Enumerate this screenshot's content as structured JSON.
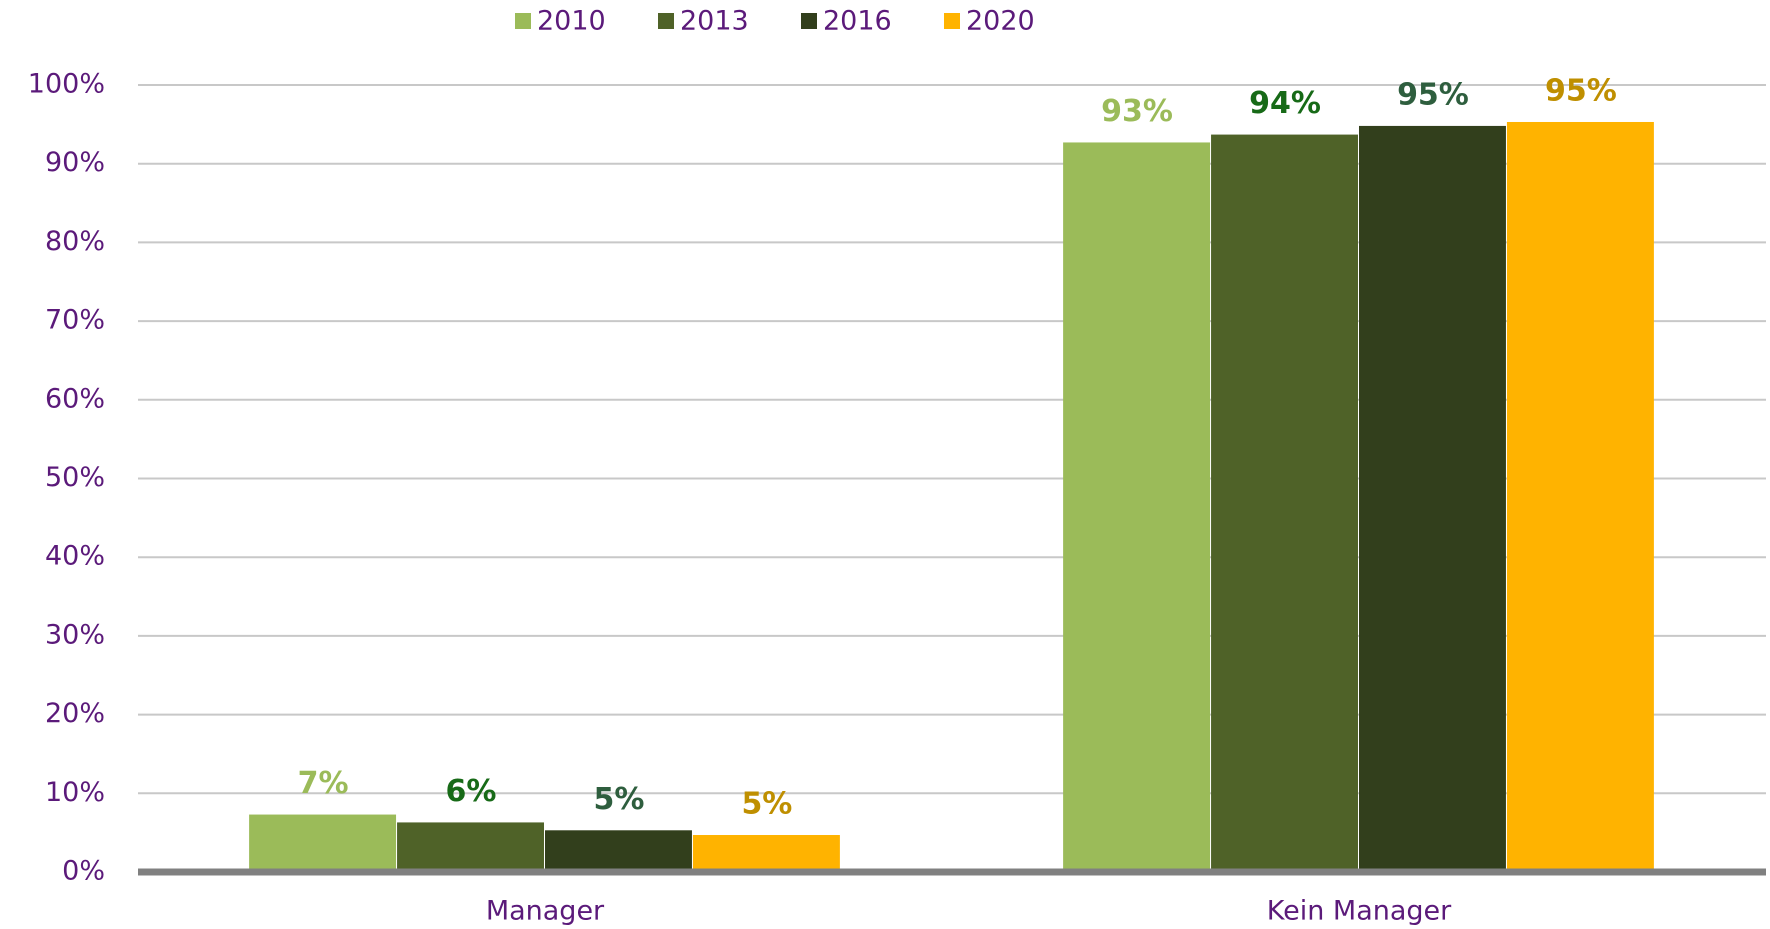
{
  "chart_data": {
    "type": "bar",
    "categories": [
      "Manager",
      "Kein Manager"
    ],
    "series": [
      {
        "name": "2010",
        "color": "#9bbb59",
        "label_color": "#9bbb59",
        "values": [
          7.3,
          92.7
        ],
        "value_labels": [
          "7%",
          "93%"
        ]
      },
      {
        "name": "2013",
        "color": "#4f6228",
        "label_color": "#176a17",
        "values": [
          6.3,
          93.7
        ],
        "value_labels": [
          "6%",
          "94%"
        ]
      },
      {
        "name": "2016",
        "color": "#323f1c",
        "label_color": "#2e5e3e",
        "values": [
          5.3,
          94.8
        ],
        "value_labels": [
          "5%",
          "95%"
        ]
      },
      {
        "name": "2020",
        "color": "#ffb300",
        "label_color": "#bf8f00",
        "values": [
          4.7,
          95.3
        ],
        "value_labels": [
          "5%",
          "95%"
        ]
      }
    ],
    "ylim": [
      0,
      100
    ],
    "yticks": [
      {
        "value": 0,
        "label": "0%"
      },
      {
        "value": 10,
        "label": "10%"
      },
      {
        "value": 20,
        "label": "20%"
      },
      {
        "value": 30,
        "label": "30%"
      },
      {
        "value": 40,
        "label": "40%"
      },
      {
        "value": 50,
        "label": "50%"
      },
      {
        "value": 60,
        "label": "60%"
      },
      {
        "value": 70,
        "label": "70%"
      },
      {
        "value": 80,
        "label": "80%"
      },
      {
        "value": 90,
        "label": "90%"
      },
      {
        "value": 100,
        "label": "100%"
      }
    ],
    "grid": true,
    "legend": "top"
  }
}
